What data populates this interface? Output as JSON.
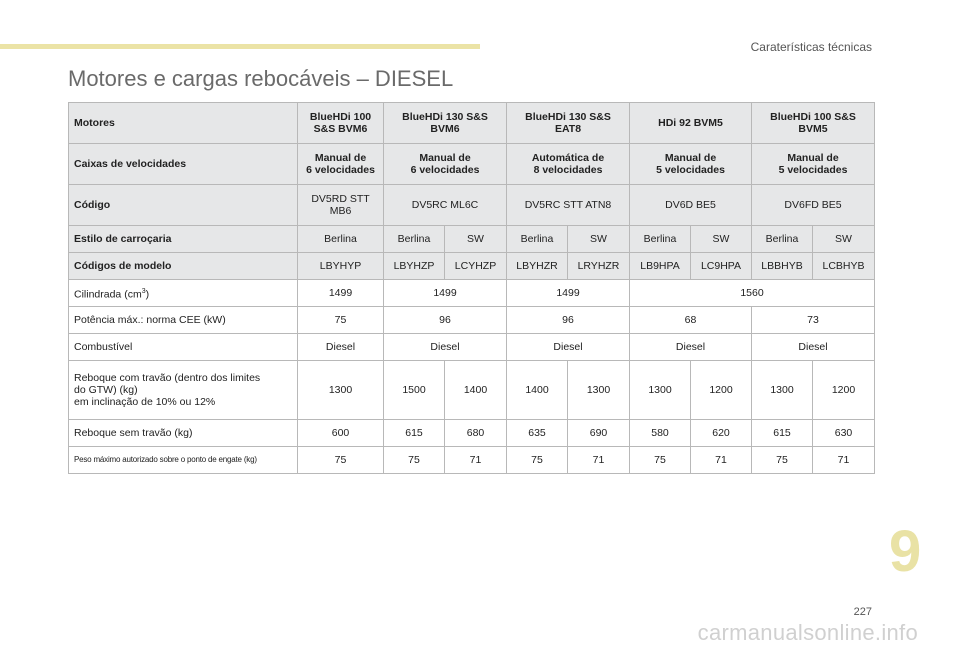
{
  "header": {
    "section_label": "Caraterísticas técnicas"
  },
  "title": "Motores e cargas rebocáveis – DIESEL",
  "table": {
    "motores": {
      "label": "Motores",
      "cells": [
        "BlueHDi 100\nS&S BVM6",
        "BlueHDi 130 S&S\nBVM6",
        "BlueHDi 130 S&S\nEAT8",
        "HDi 92 BVM5",
        "BlueHDi 100 S&S\nBVM5"
      ]
    },
    "caixas": {
      "label": "Caixas de velocidades",
      "cells": [
        "Manual de\n6 velocidades",
        "Manual de\n6 velocidades",
        "Automática de\n8 velocidades",
        "Manual de\n5 velocidades",
        "Manual de\n5 velocidades"
      ]
    },
    "codigo": {
      "label": "Código",
      "cells": [
        "DV5RD STT\nMB6",
        "DV5RC ML6C",
        "DV5RC STT ATN8",
        "DV6D BE5",
        "DV6FD BE5"
      ]
    },
    "estilo": {
      "label": "Estilo de carroçaria",
      "cells": [
        "Berlina",
        "Berlina",
        "SW",
        "Berlina",
        "SW",
        "Berlina",
        "SW",
        "Berlina",
        "SW"
      ]
    },
    "codigos_modelo": {
      "label": "Códigos de modelo",
      "cells": [
        "LBYHYP",
        "LBYHZP",
        "LCYHZP",
        "LBYHZR",
        "LRYHZR",
        "LB9HPA",
        "LC9HPA",
        "LBBHYB",
        "LCBHYB"
      ]
    },
    "cilindrada": {
      "label_text": "Cilindrada (cm",
      "label_sup": "3",
      "label_end": ")",
      "cells": [
        "1499",
        "1499",
        "1499",
        "1560"
      ]
    },
    "potencia": {
      "label": "Potência máx.: norma CEE (kW)",
      "cells": [
        "75",
        "96",
        "96",
        "68",
        "73"
      ]
    },
    "combustivel": {
      "label": "Combustível",
      "cells": [
        "Diesel",
        "Diesel",
        "Diesel",
        "Diesel",
        "Diesel"
      ]
    },
    "reboque_com": {
      "label": "Reboque com travão (dentro dos limites\ndo GTW) (kg)\nem inclinação de 10% ou 12%",
      "cells": [
        "1300",
        "1500",
        "1400",
        "1400",
        "1300",
        "1300",
        "1200",
        "1300",
        "1200"
      ]
    },
    "reboque_sem": {
      "label": "Reboque sem travão (kg)",
      "cells": [
        "600",
        "615",
        "680",
        "635",
        "690",
        "580",
        "620",
        "615",
        "630"
      ]
    },
    "peso_max": {
      "label": "Peso máximo autorizado sobre o ponto de engate (kg)",
      "cells": [
        "75",
        "75",
        "71",
        "75",
        "71",
        "75",
        "71",
        "75",
        "71"
      ]
    }
  },
  "chapter_number": "9",
  "page_number": "227",
  "watermark": "carmanualsonline.info",
  "colors": {
    "accent_yellow": "#ebe3a6",
    "header_grey": "#e6e7e8",
    "border": "#b8b8b8"
  }
}
